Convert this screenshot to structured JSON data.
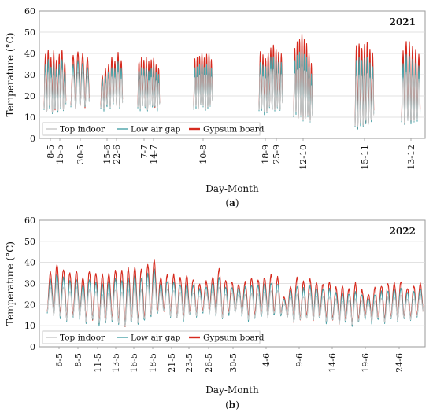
{
  "chart_data": [
    {
      "type": "line",
      "panel_label": "(a)",
      "panel_letter": "a",
      "annotation": "2021",
      "title": "",
      "xlabel": "Day-Month",
      "ylabel": "Temperature (°C)",
      "ylim": [
        0,
        60
      ],
      "yticks": [
        0,
        10,
        20,
        30,
        40,
        50,
        60
      ],
      "grid": true,
      "legend": {
        "position": "bottom-left",
        "entries": [
          "Top indoor",
          "Low air gap",
          "Gypsum board"
        ]
      },
      "xtick_labels": [
        "8-5",
        "15-5",
        "30-5",
        "15-6",
        "22-6",
        "7-7",
        "14-7",
        "10-8",
        "18-9",
        "25-9",
        "12-10",
        "15-11",
        "13-12"
      ],
      "series": [
        {
          "name": "Top indoor",
          "color": "#c8c8c8"
        },
        {
          "name": "Low air gap",
          "color": "#4aa3a8"
        },
        {
          "name": "Gypsum board",
          "color": "#d62a1e"
        }
      ],
      "segments": [
        {
          "start": "8-5",
          "end": "15-5",
          "peaks": [
            40,
            42,
            38,
            41,
            37,
            39,
            42,
            36
          ],
          "troughs": [
            14,
            13,
            15,
            12,
            14,
            13,
            15,
            14
          ]
        },
        {
          "start": "30-5",
          "end": "30-5",
          "peaks": [
            39,
            41,
            40,
            38
          ],
          "troughs": [
            15,
            14,
            16,
            15
          ]
        },
        {
          "start": "15-6",
          "end": "22-6",
          "peaks": [
            30,
            33,
            35,
            38,
            36,
            40,
            37
          ],
          "troughs": [
            15,
            14,
            16,
            15,
            17,
            16,
            15
          ]
        },
        {
          "start": "7-7",
          "end": "14-7",
          "peaks": [
            36,
            38,
            37,
            38,
            36,
            37,
            38,
            34,
            33
          ],
          "troughs": [
            15,
            14,
            16,
            15,
            14,
            16,
            15,
            15,
            14
          ]
        },
        {
          "start": "10-8",
          "end": "10-8",
          "peaks": [
            37,
            38,
            39,
            40,
            38,
            39,
            40,
            37
          ],
          "troughs": [
            14,
            15,
            14,
            16,
            15,
            14,
            15,
            16
          ]
        },
        {
          "start": "18-9",
          "end": "25-9",
          "peaks": [
            41,
            39,
            38,
            40,
            43,
            44,
            42,
            41,
            40
          ],
          "troughs": [
            13,
            14,
            12,
            13,
            15,
            14,
            13,
            15,
            14
          ]
        },
        {
          "start": "12-10",
          "end": "12-10",
          "peaks": [
            42,
            45,
            47,
            49,
            46,
            44,
            40,
            35
          ],
          "troughs": [
            11,
            12,
            10,
            11,
            9,
            10,
            11,
            8
          ]
        },
        {
          "start": "15-11",
          "end": "15-11",
          "peaks": [
            44,
            45,
            43,
            44,
            45,
            42,
            40
          ],
          "troughs": [
            6,
            5,
            7,
            6,
            8,
            7,
            8
          ]
        },
        {
          "start": "13-12",
          "end": "13-12",
          "peaks": [
            41,
            46,
            45,
            43,
            42,
            39
          ],
          "troughs": [
            8,
            7,
            9,
            8,
            8,
            9
          ]
        }
      ]
    },
    {
      "type": "line",
      "panel_label": "(b)",
      "panel_letter": "b",
      "annotation": "2022",
      "title": "",
      "xlabel": "Day-Month",
      "ylabel": "Temperature (°C)",
      "ylim": [
        0,
        60
      ],
      "yticks": [
        0,
        10,
        20,
        30,
        40,
        50,
        60
      ],
      "grid": true,
      "legend": {
        "position": "bottom-left",
        "entries": [
          "Top indoor",
          "Low air gap",
          "Gypsum board"
        ]
      },
      "xtick_labels": [
        "6-5",
        "8-5",
        "11-5",
        "13-5",
        "16-5",
        "18-5",
        "21-5",
        "23-5",
        "26-5",
        "30-5",
        "4-6",
        "9-6",
        "14-6",
        "19-6",
        "24-6"
      ],
      "series": [
        {
          "name": "Top indoor",
          "color": "#c8c8c8"
        },
        {
          "name": "Low air gap",
          "color": "#4aa3a8"
        },
        {
          "name": "Gypsum board",
          "color": "#d62a1e"
        }
      ],
      "daily_peaks": [
        35,
        39,
        37,
        35,
        36,
        33,
        36,
        35,
        34,
        35,
        36,
        36,
        37,
        38,
        37,
        39,
        41,
        33,
        34,
        34,
        33,
        34,
        32,
        30,
        31,
        33,
        37,
        32,
        31,
        30,
        31,
        33,
        32,
        33,
        34,
        33,
        24,
        29,
        33,
        31,
        32,
        31,
        30,
        31,
        28,
        29,
        28,
        30,
        27,
        25,
        28,
        29,
        30,
        30,
        31,
        28,
        29,
        30
      ],
      "daily_troughs": [
        16,
        15,
        14,
        13,
        15,
        14,
        12,
        13,
        11,
        12,
        13,
        11,
        10,
        12,
        11,
        13,
        15,
        16,
        17,
        15,
        14,
        13,
        16,
        15,
        17,
        16,
        15,
        14,
        16,
        17,
        15,
        13,
        14,
        15,
        14,
        16,
        15,
        14,
        12,
        13,
        14,
        13,
        14,
        12,
        13,
        11,
        12,
        10,
        13,
        14,
        12,
        13,
        12,
        14,
        13,
        14,
        13,
        15
      ]
    }
  ]
}
